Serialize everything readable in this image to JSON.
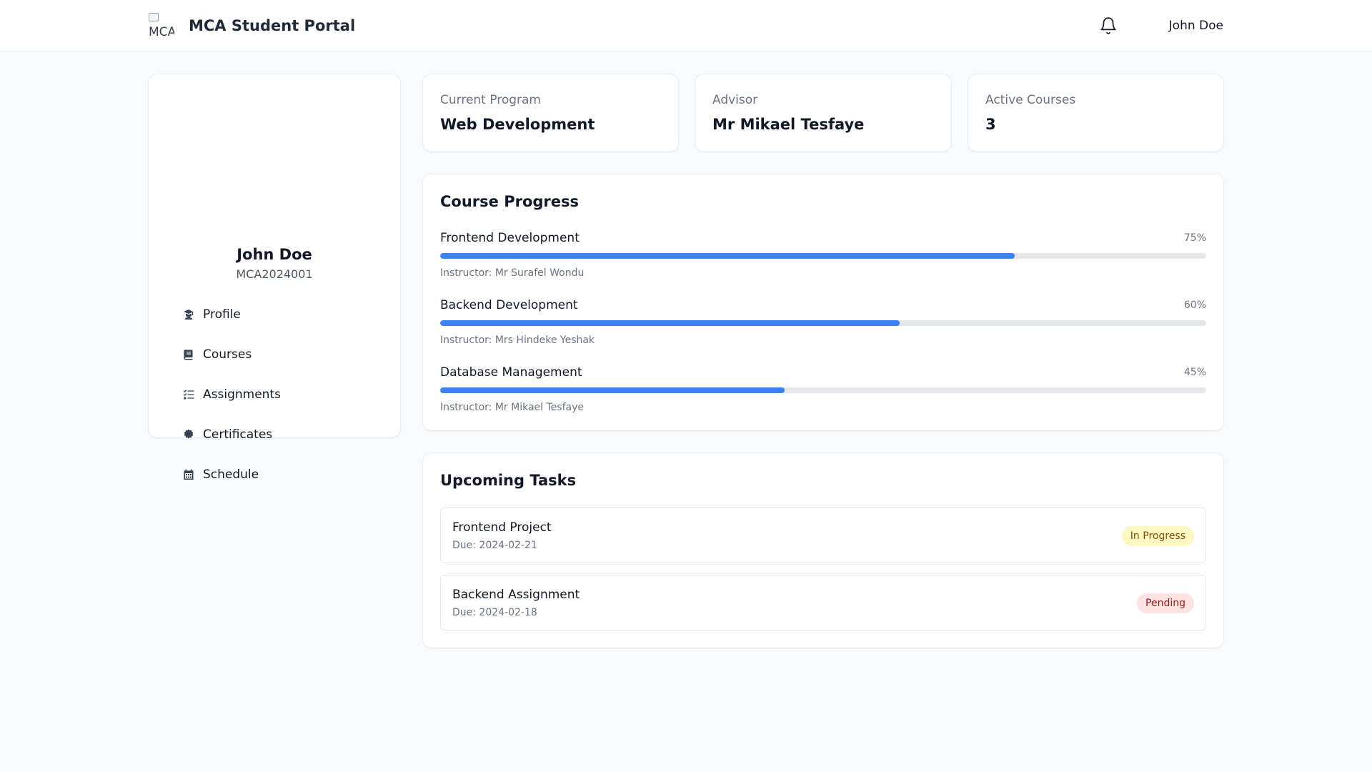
{
  "header": {
    "logo_alt": "MCA",
    "title": "MCA Student Portal",
    "user_name": "John Doe",
    "notification_icon": "bell-icon"
  },
  "profile": {
    "name": "John Doe",
    "student_id": "MCA2024001"
  },
  "nav": [
    {
      "label": "Profile",
      "icon": "graduate-icon"
    },
    {
      "label": "Courses",
      "icon": "book-icon"
    },
    {
      "label": "Assignments",
      "icon": "tasks-icon"
    },
    {
      "label": "Certificates",
      "icon": "certificate-icon"
    },
    {
      "label": "Schedule",
      "icon": "calendar-icon"
    }
  ],
  "stats": [
    {
      "label": "Current Program",
      "value": "Web Development"
    },
    {
      "label": "Advisor",
      "value": "Mr Mikael Tesfaye"
    },
    {
      "label": "Active Courses",
      "value": "3"
    }
  ],
  "course_progress": {
    "title": "Course Progress",
    "courses": [
      {
        "name": "Frontend Development",
        "percent_label": "75%",
        "progress": 0.75,
        "instructor": "Instructor: Mr Surafel Wondu"
      },
      {
        "name": "Backend Development",
        "percent_label": "60%",
        "progress": 0.6,
        "instructor": "Instructor: Mrs Hindeke Yeshak"
      },
      {
        "name": "Database Management",
        "percent_label": "45%",
        "progress": 0.45,
        "instructor": "Instructor: Mr Mikael Tesfaye"
      }
    ]
  },
  "tasks": {
    "title": "Upcoming Tasks",
    "items": [
      {
        "title": "Frontend Project",
        "due": "Due: 2024-02-21",
        "status": "In Progress"
      },
      {
        "title": "Backend Assignment",
        "due": "Due: 2024-02-18",
        "status": "Pending"
      }
    ]
  },
  "colors": {
    "accent": "#3b82f6",
    "status_in_progress_bg": "#fef9c3",
    "status_pending_bg": "#fee2e2"
  }
}
